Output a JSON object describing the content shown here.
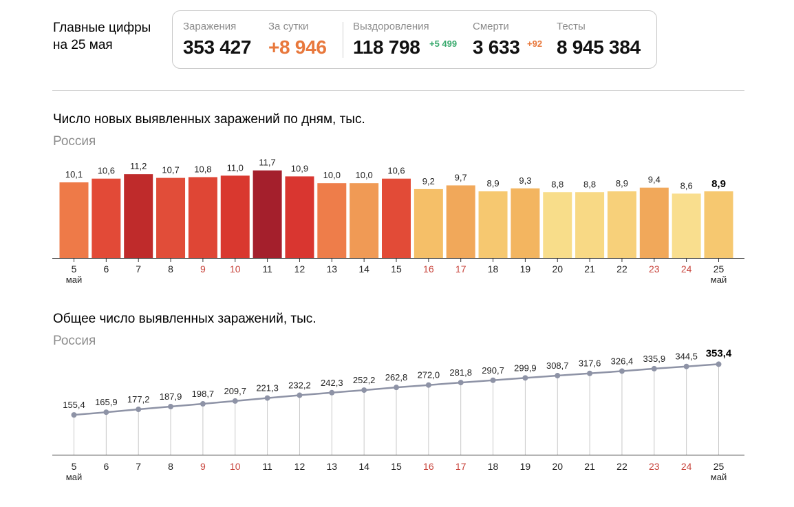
{
  "header": {
    "title_line1": "Главные цифры",
    "title_line2": "на 25 мая"
  },
  "stats": {
    "infections_label": "Заражения",
    "infections_value": "353 427",
    "daily_label": "За сутки",
    "daily_value": "+8 946",
    "recovered_label": "Выздоровления",
    "recovered_value": "118 798",
    "recovered_delta": "+5 499",
    "deaths_label": "Смерти",
    "deaths_value": "3 633",
    "deaths_delta": "+92",
    "tests_label": "Тесты",
    "tests_value": "8 945 384"
  },
  "colors": {
    "accent_orange": "#e8783c",
    "recovery_green": "#3aaa6e",
    "weekend_red": "#c8443c",
    "line_gray": "#8e93a6"
  },
  "chart_data": [
    {
      "type": "bar",
      "title": "Число новых выявленных заражений по дням, тыс.",
      "subtitle": "Россия",
      "categories": [
        "5",
        "6",
        "7",
        "8",
        "9",
        "10",
        "11",
        "12",
        "13",
        "14",
        "15",
        "16",
        "17",
        "18",
        "19",
        "20",
        "21",
        "22",
        "23",
        "24",
        "25"
      ],
      "first_month_label": "май",
      "last_month_label": "май",
      "weekend_categories": [
        "9",
        "10",
        "16",
        "17",
        "23",
        "24"
      ],
      "values": [
        10.1,
        10.6,
        11.2,
        10.7,
        10.8,
        11.0,
        11.7,
        10.9,
        10.0,
        10.0,
        10.6,
        9.2,
        9.7,
        8.9,
        9.3,
        8.8,
        8.8,
        8.9,
        9.4,
        8.6,
        8.9
      ],
      "value_labels": [
        "10,1",
        "10,6",
        "11,2",
        "10,7",
        "10,8",
        "11,0",
        "11,7",
        "10,9",
        "10,0",
        "10,0",
        "10,6",
        "9,2",
        "9,7",
        "8,9",
        "9,3",
        "8,8",
        "8,8",
        "8,9",
        "9,4",
        "8,6",
        "8,9"
      ],
      "bar_colors": [
        "#ee7a48",
        "#e24a37",
        "#bf2b2b",
        "#e14d39",
        "#df4635",
        "#d9382f",
        "#a41f2c",
        "#d93630",
        "#ee7d4a",
        "#f09a55",
        "#e24b37",
        "#f5bf68",
        "#f1a85a",
        "#f6c870",
        "#f3b560",
        "#f8dd8a",
        "#f8d985",
        "#f7d07a",
        "#f1a85a",
        "#f9de8e",
        "#f6c870"
      ],
      "ylim": [
        0,
        12.5
      ],
      "grid": false
    },
    {
      "type": "line",
      "title": "Общее число выявленных заражений, тыс.",
      "subtitle": "Россия",
      "categories": [
        "5",
        "6",
        "7",
        "8",
        "9",
        "10",
        "11",
        "12",
        "13",
        "14",
        "15",
        "16",
        "17",
        "18",
        "19",
        "20",
        "21",
        "22",
        "23",
        "24",
        "25"
      ],
      "first_month_label": "май",
      "last_month_label": "май",
      "weekend_categories": [
        "9",
        "10",
        "16",
        "17",
        "23",
        "24"
      ],
      "values": [
        155.4,
        165.9,
        177.2,
        187.9,
        198.7,
        209.7,
        221.3,
        232.2,
        242.3,
        252.2,
        262.8,
        272.0,
        281.8,
        290.7,
        299.9,
        308.7,
        317.6,
        326.4,
        335.9,
        344.5,
        353.4
      ],
      "value_labels": [
        "155,4",
        "165,9",
        "177,2",
        "187,9",
        "198,7",
        "209,7",
        "221,3",
        "232,2",
        "242,3",
        "252,2",
        "262,8",
        "272,0",
        "281,8",
        "290,7",
        "299,9",
        "308,7",
        "317,6",
        "326,4",
        "335,9",
        "344,5",
        "353,4"
      ],
      "line_color": "#8e93a6",
      "ylim": [
        0,
        470
      ],
      "grid": false
    }
  ]
}
